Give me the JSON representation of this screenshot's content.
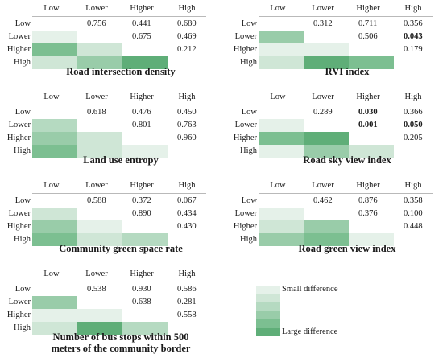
{
  "colors": {
    "level1": "#e5f1e9",
    "level2": "#cfe6d6",
    "level3": "#b5dac1",
    "level4": "#99cca9",
    "level5": "#7cbf91",
    "level6": "#5fae78"
  },
  "legend": {
    "small_label": "Small difference",
    "large_label": "Large difference",
    "levels": [
      1,
      2,
      3,
      4,
      5,
      6
    ]
  },
  "chart_data": [
    {
      "type": "heatmap",
      "title": "Road intersection density",
      "col_labels": [
        "Low",
        "Lower",
        "Higher",
        "High"
      ],
      "row_labels": [
        "Low",
        "Lower",
        "Higher",
        "High"
      ],
      "pvalues": [
        {
          "row": 0,
          "col": 1,
          "text": "0.756",
          "bold": false
        },
        {
          "row": 0,
          "col": 2,
          "text": "0.441",
          "bold": false
        },
        {
          "row": 0,
          "col": 3,
          "text": "0.680",
          "bold": false
        },
        {
          "row": 1,
          "col": 2,
          "text": "0.675",
          "bold": false
        },
        {
          "row": 1,
          "col": 3,
          "text": "0.469",
          "bold": false
        },
        {
          "row": 2,
          "col": 3,
          "text": "0.212",
          "bold": false
        }
      ],
      "lower_levels": [
        [
          1,
          0,
          1
        ],
        [
          2,
          0,
          0
        ],
        [
          3,
          0,
          0
        ]
      ],
      "shade_levels": [
        {
          "row": 1,
          "col": 0,
          "level": 1
        },
        {
          "row": 2,
          "col": 0,
          "level": 5
        },
        {
          "row": 2,
          "col": 1,
          "level": 2
        },
        {
          "row": 3,
          "col": 0,
          "level": 2
        },
        {
          "row": 3,
          "col": 1,
          "level": 4
        },
        {
          "row": 3,
          "col": 2,
          "level": 6
        }
      ]
    },
    {
      "type": "heatmap",
      "title": "RVI index",
      "col_labels": [
        "Low",
        "Lower",
        "Higher",
        "High"
      ],
      "row_labels": [
        "Low",
        "Lower",
        "Higher",
        "High"
      ],
      "pvalues": [
        {
          "row": 0,
          "col": 1,
          "text": "0.312",
          "bold": false
        },
        {
          "row": 0,
          "col": 2,
          "text": "0.711",
          "bold": false
        },
        {
          "row": 0,
          "col": 3,
          "text": "0.356",
          "bold": false
        },
        {
          "row": 1,
          "col": 2,
          "text": "0.506",
          "bold": false
        },
        {
          "row": 1,
          "col": 3,
          "text": "0.043",
          "bold": true
        },
        {
          "row": 2,
          "col": 3,
          "text": "0.179",
          "bold": false
        }
      ],
      "shade_levels": [
        {
          "row": 1,
          "col": 0,
          "level": 4
        },
        {
          "row": 2,
          "col": 0,
          "level": 1
        },
        {
          "row": 2,
          "col": 1,
          "level": 1
        },
        {
          "row": 3,
          "col": 0,
          "level": 2
        },
        {
          "row": 3,
          "col": 1,
          "level": 6
        },
        {
          "row": 3,
          "col": 2,
          "level": 5
        }
      ]
    },
    {
      "type": "heatmap",
      "title": "Land use entropy",
      "col_labels": [
        "Low",
        "Lower",
        "Higher",
        "High"
      ],
      "row_labels": [
        "Low",
        "Lower",
        "Higher",
        "High"
      ],
      "pvalues": [
        {
          "row": 0,
          "col": 1,
          "text": "0.618",
          "bold": false
        },
        {
          "row": 0,
          "col": 2,
          "text": "0.476",
          "bold": false
        },
        {
          "row": 0,
          "col": 3,
          "text": "0.450",
          "bold": false
        },
        {
          "row": 1,
          "col": 2,
          "text": "0.801",
          "bold": false
        },
        {
          "row": 1,
          "col": 3,
          "text": "0.763",
          "bold": false
        },
        {
          "row": 2,
          "col": 3,
          "text": "0.960",
          "bold": false
        }
      ],
      "shade_levels": [
        {
          "row": 1,
          "col": 0,
          "level": 3
        },
        {
          "row": 2,
          "col": 0,
          "level": 4
        },
        {
          "row": 2,
          "col": 1,
          "level": 2
        },
        {
          "row": 3,
          "col": 0,
          "level": 5
        },
        {
          "row": 3,
          "col": 1,
          "level": 2
        },
        {
          "row": 3,
          "col": 2,
          "level": 1
        }
      ]
    },
    {
      "type": "heatmap",
      "title": "Road sky view index",
      "col_labels": [
        "Low",
        "Lower",
        "Higher",
        "High"
      ],
      "row_labels": [
        "Low",
        "Lower",
        "Higher",
        "High"
      ],
      "pvalues": [
        {
          "row": 0,
          "col": 1,
          "text": "0.289",
          "bold": false
        },
        {
          "row": 0,
          "col": 2,
          "text": "0.030",
          "bold": true
        },
        {
          "row": 0,
          "col": 3,
          "text": "0.366",
          "bold": false
        },
        {
          "row": 1,
          "col": 2,
          "text": "0.001",
          "bold": true
        },
        {
          "row": 1,
          "col": 3,
          "text": "0.050",
          "bold": true
        },
        {
          "row": 2,
          "col": 3,
          "text": "0.205",
          "bold": false
        }
      ],
      "shade_levels": [
        {
          "row": 1,
          "col": 0,
          "level": 1
        },
        {
          "row": 2,
          "col": 0,
          "level": 5
        },
        {
          "row": 2,
          "col": 1,
          "level": 6
        },
        {
          "row": 3,
          "col": 0,
          "level": 1
        },
        {
          "row": 3,
          "col": 1,
          "level": 4
        },
        {
          "row": 3,
          "col": 2,
          "level": 2
        }
      ]
    },
    {
      "type": "heatmap",
      "title": "Community green space rate",
      "col_labels": [
        "Low",
        "Lower",
        "Higher",
        "High"
      ],
      "row_labels": [
        "Low",
        "Lower",
        "Higher",
        "High"
      ],
      "pvalues": [
        {
          "row": 0,
          "col": 1,
          "text": "0.588",
          "bold": false
        },
        {
          "row": 0,
          "col": 2,
          "text": "0.372",
          "bold": false
        },
        {
          "row": 0,
          "col": 3,
          "text": "0.067",
          "bold": false
        },
        {
          "row": 1,
          "col": 2,
          "text": "0.890",
          "bold": false
        },
        {
          "row": 1,
          "col": 3,
          "text": "0.434",
          "bold": false
        },
        {
          "row": 2,
          "col": 3,
          "text": "0.430",
          "bold": false
        }
      ],
      "shade_levels": [
        {
          "row": 1,
          "col": 0,
          "level": 2
        },
        {
          "row": 2,
          "col": 0,
          "level": 4
        },
        {
          "row": 2,
          "col": 1,
          "level": 1
        },
        {
          "row": 3,
          "col": 0,
          "level": 5
        },
        {
          "row": 3,
          "col": 1,
          "level": 2
        },
        {
          "row": 3,
          "col": 2,
          "level": 3
        }
      ]
    },
    {
      "type": "heatmap",
      "title": "Road green view index",
      "col_labels": [
        "Low",
        "Lower",
        "Higher",
        "High"
      ],
      "row_labels": [
        "Low",
        "Lower",
        "Higher",
        "High"
      ],
      "pvalues": [
        {
          "row": 0,
          "col": 1,
          "text": "0.462",
          "bold": false
        },
        {
          "row": 0,
          "col": 2,
          "text": "0.876",
          "bold": false
        },
        {
          "row": 0,
          "col": 3,
          "text": "0.358",
          "bold": false
        },
        {
          "row": 1,
          "col": 2,
          "text": "0.376",
          "bold": false
        },
        {
          "row": 1,
          "col": 3,
          "text": "0.100",
          "bold": false
        },
        {
          "row": 2,
          "col": 3,
          "text": "0.448",
          "bold": false
        }
      ],
      "shade_levels": [
        {
          "row": 1,
          "col": 0,
          "level": 1
        },
        {
          "row": 2,
          "col": 0,
          "level": 2
        },
        {
          "row": 2,
          "col": 1,
          "level": 4
        },
        {
          "row": 3,
          "col": 0,
          "level": 4
        },
        {
          "row": 3,
          "col": 1,
          "level": 5
        },
        {
          "row": 3,
          "col": 2,
          "level": 1
        }
      ]
    },
    {
      "type": "heatmap",
      "title": "Number of bus stops within 500 meters of the community border",
      "title_lines": [
        "Number of bus stops within 500",
        "meters of the community border"
      ],
      "col_labels": [
        "Low",
        "Lower",
        "Higher",
        "High"
      ],
      "row_labels": [
        "Low",
        "Lower",
        "Higher",
        "High"
      ],
      "pvalues": [
        {
          "row": 0,
          "col": 1,
          "text": "0.538",
          "bold": false
        },
        {
          "row": 0,
          "col": 2,
          "text": "0.930",
          "bold": false
        },
        {
          "row": 0,
          "col": 3,
          "text": "0.586",
          "bold": false
        },
        {
          "row": 1,
          "col": 2,
          "text": "0.638",
          "bold": false
        },
        {
          "row": 1,
          "col": 3,
          "text": "0.281",
          "bold": false
        },
        {
          "row": 2,
          "col": 3,
          "text": "0.558",
          "bold": false
        }
      ],
      "shade_levels": [
        {
          "row": 1,
          "col": 0,
          "level": 4
        },
        {
          "row": 2,
          "col": 0,
          "level": 1
        },
        {
          "row": 2,
          "col": 1,
          "level": 1
        },
        {
          "row": 3,
          "col": 0,
          "level": 2
        },
        {
          "row": 3,
          "col": 1,
          "level": 6
        },
        {
          "row": 3,
          "col": 2,
          "level": 3
        }
      ]
    }
  ]
}
